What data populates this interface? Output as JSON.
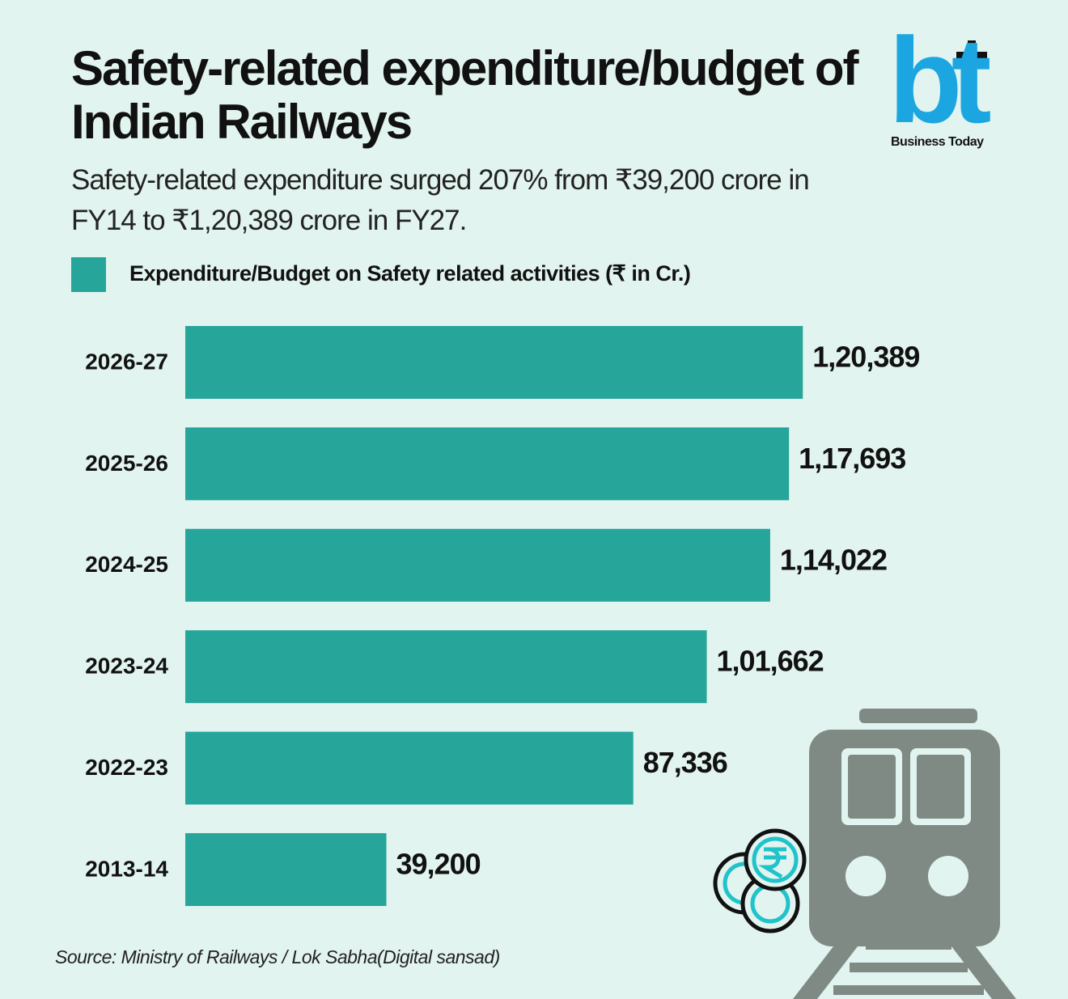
{
  "logo": {
    "mark": "bt",
    "caption": "Business Today"
  },
  "chart_data": {
    "type": "bar",
    "orientation": "horizontal",
    "title": "Safety-related expenditure/budget of Indian Railways",
    "subtitle": "Safety-related expenditure surged 207% from ₹39,200 crore in FY14 to ₹1,20,389 crore in FY27.",
    "categories": [
      "2026-27",
      "2025-26",
      "2024-25",
      "2023-24",
      "2022-23",
      "2013-14"
    ],
    "series": [
      {
        "name": "Expenditure/Budget on Safety related activities (₹ in Cr.)",
        "color": "#26a69a",
        "values": [
          120389,
          117693,
          114022,
          101662,
          87336,
          39200
        ],
        "value_labels": [
          "1,20,389",
          "1,17,693",
          "1,14,022",
          "1,01,662",
          "87,336",
          "39,200"
        ]
      }
    ],
    "xlim": [
      0,
      150000
    ],
    "source": "Source: Ministry of Railways / Lok Sabha(Digital sansad)"
  }
}
